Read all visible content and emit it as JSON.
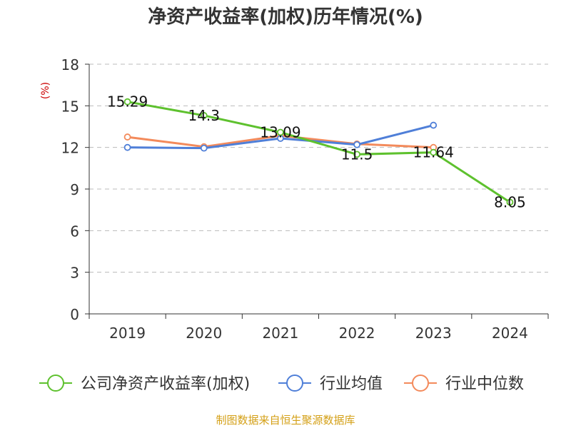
{
  "chart_data": {
    "type": "line",
    "title": "净资产收益率(加权)历年情况(%)",
    "ylabel": "(%)",
    "xlabel": "",
    "categories": [
      "2019",
      "2020",
      "2021",
      "2022",
      "2023",
      "2024"
    ],
    "ylim": [
      0,
      18
    ],
    "yticks": [
      0,
      3,
      6,
      9,
      12,
      15,
      18
    ],
    "grid": true,
    "legend_position": "bottom",
    "series": [
      {
        "name": "公司净资产收益率(加权)",
        "color": "#5ec12e",
        "values": [
          15.29,
          14.3,
          13.09,
          11.5,
          11.64,
          8.05
        ],
        "data_labels": [
          "15.29",
          "14.3",
          "13.09",
          "11.5",
          "11.64",
          "8.05"
        ]
      },
      {
        "name": "行业均值",
        "color": "#4f7fd8",
        "values": [
          12.0,
          11.95,
          12.65,
          12.2,
          13.6,
          null
        ]
      },
      {
        "name": "行业中位数",
        "color": "#f38a5b",
        "values": [
          12.75,
          12.05,
          12.85,
          12.25,
          12.0,
          null
        ]
      }
    ],
    "source": "制图数据来自恒生聚源数据库"
  },
  "colors": {
    "axis": "#333333",
    "grid": "#bbbbbb",
    "ylabel": "#cc0000",
    "source": "#d4a017"
  }
}
